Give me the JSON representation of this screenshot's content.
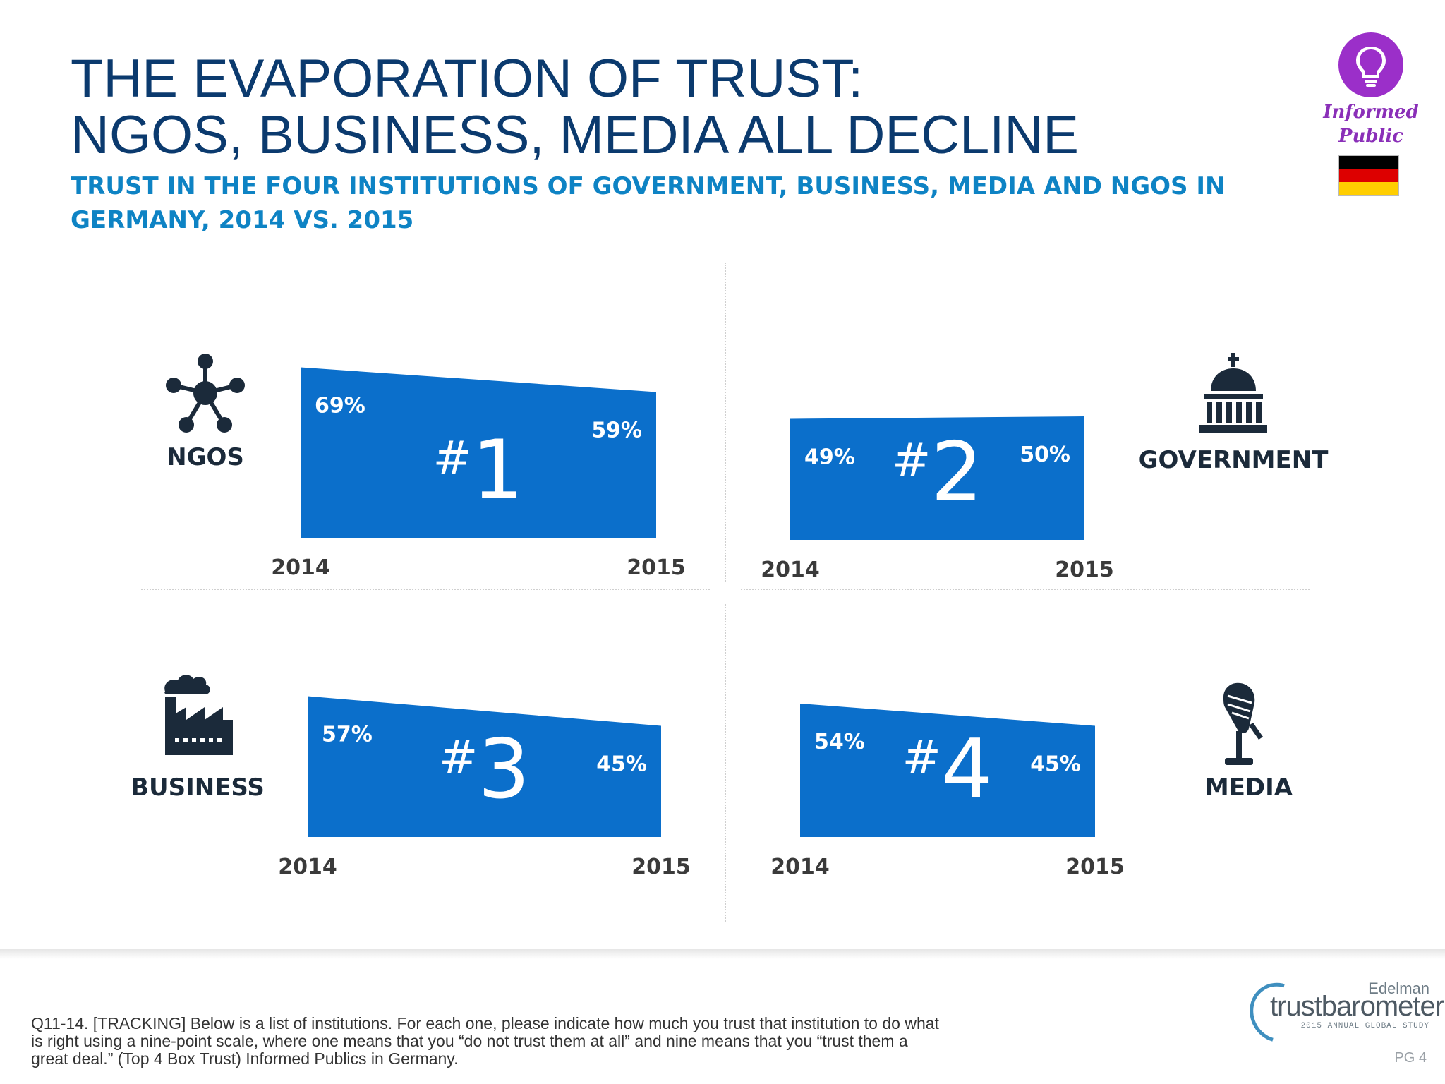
{
  "header": {
    "title_line1": "THE EVAPORATION OF TRUST:",
    "title_line2": "NGOS, BUSINESS, MEDIA ALL DECLINE",
    "subtitle": "TRUST IN THE FOUR INSTITUTIONS OF GOVERNMENT, BUSINESS, MEDIA AND NGOS IN GERMANY, 2014 VS. 2015"
  },
  "badge": {
    "icon": "lightbulb-icon",
    "line1": "Informed",
    "line2": "Public",
    "flag": "germany-flag-icon",
    "accent": "#9b2fc9",
    "flag_colors": [
      "#000000",
      "#dd0000",
      "#ffce00"
    ]
  },
  "colors": {
    "bar": "#0b6fcb",
    "title": "#0b3a6e",
    "subtitle": "#0e83c4"
  },
  "chart_data": [
    {
      "type": "area",
      "institution": "NGOS",
      "rank": "#1",
      "x": [
        "2014",
        "2015"
      ],
      "values": [
        69,
        59
      ],
      "value_labels": [
        "69%",
        "59%"
      ],
      "icon": "network-icon"
    },
    {
      "type": "area",
      "institution": "GOVERNMENT",
      "rank": "#2",
      "x": [
        "2014",
        "2015"
      ],
      "values": [
        49,
        50
      ],
      "value_labels": [
        "49%",
        "50%"
      ],
      "icon": "capitol-building-icon"
    },
    {
      "type": "area",
      "institution": "BUSINESS",
      "rank": "#3",
      "x": [
        "2014",
        "2015"
      ],
      "values": [
        57,
        45
      ],
      "value_labels": [
        "57%",
        "45%"
      ],
      "icon": "factory-icon"
    },
    {
      "type": "area",
      "institution": "MEDIA",
      "rank": "#4",
      "x": [
        "2014",
        "2015"
      ],
      "values": [
        54,
        45
      ],
      "value_labels": [
        "54%",
        "45%"
      ],
      "icon": "microphone-icon"
    }
  ],
  "footer": {
    "footnote": "Q11-14. [TRACKING] Below is a list of institutions. For each one, please indicate how much you trust that institution to do what is right using a nine-point scale, where one means that you “do not trust them at all” and nine means that you “trust them a great deal.” (Top 4 Box Trust) Informed Publics in Germany.",
    "logo_brand": "Edelman",
    "logo_name": "trustbarometer",
    "logo_tagline": "2015 ANNUAL GLOBAL STUDY",
    "page": "PG 4"
  }
}
